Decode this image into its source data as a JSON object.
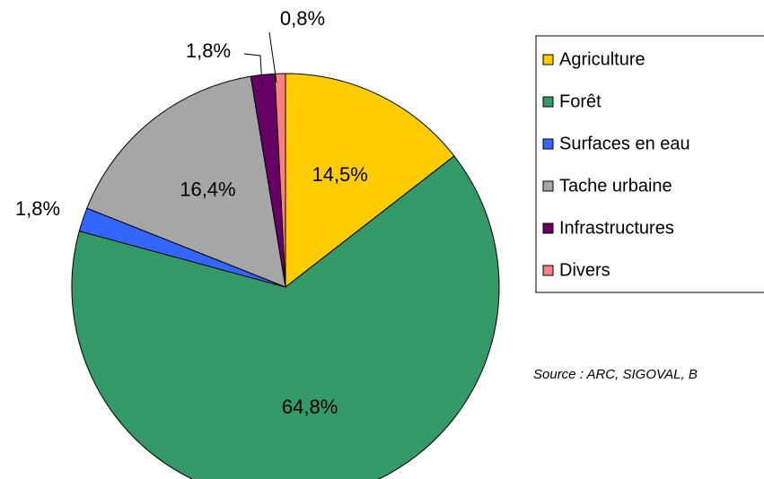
{
  "chart_data": {
    "type": "pie",
    "categories": [
      "Agriculture",
      "Forêt",
      "Surfaces en eau",
      "Tache urbaine",
      "Infrastructures",
      "Divers"
    ],
    "values": [
      14.5,
      64.8,
      1.8,
      16.4,
      1.8,
      0.8
    ],
    "value_labels": [
      "14,5%",
      "64,8%",
      "1,8%",
      "16,4%",
      "1,8%",
      "0,8%"
    ],
    "colors": [
      "#FFCC00",
      "#339966",
      "#3366FF",
      "#A6A6A6",
      "#660066",
      "#FF8080"
    ],
    "legend": "right",
    "annotation": "Source : ARC, SIGOVAL, B"
  }
}
